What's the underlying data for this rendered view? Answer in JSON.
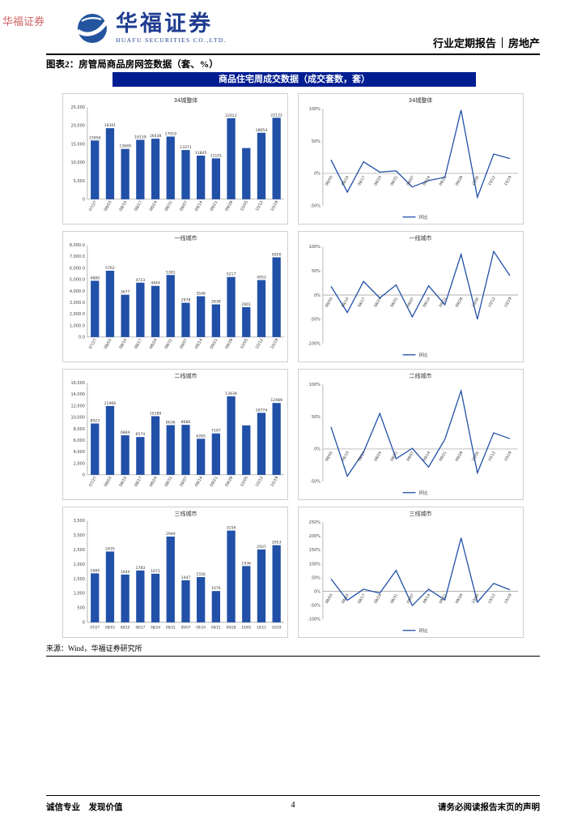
{
  "watermark": "华福证券",
  "header": {
    "brand_cn": "华福证券",
    "brand_en": "HUAFU SECURITIES CO.,LTD.",
    "report_type": "行业定期报告",
    "sector": "房地产"
  },
  "figure_caption": "图表2：房管局商品房网签数据（套、%）",
  "panel_title": "商品住宅周成交数据（成交套数，套）",
  "source": "来源：Wind，华福证券研究所",
  "footer": {
    "left": "诚信专业　发现价值",
    "page": "4",
    "right": "请务必阅读报告末页的声明"
  },
  "colors": {
    "bar": "#2150a8",
    "line": "#2150a8",
    "panel_header_bg": "#001d91",
    "brand_blue": "#1f3c90",
    "watermark_red": "#c43a3a"
  },
  "chart_data": [
    {
      "id": "bar-chart-34-cities",
      "type": "bar",
      "title": "34城整体",
      "categories": [
        "07/27",
        "08/03",
        "08/10",
        "08/17",
        "08/24",
        "08/31",
        "09/07",
        "09/14",
        "09/21",
        "09/28",
        "10/05",
        "10/12",
        "10/19"
      ],
      "values": [
        15956,
        19301,
        13669,
        16139,
        16438,
        17019,
        13371,
        11845,
        11101,
        22012,
        13900,
        18054,
        22122
      ],
      "bar_labels": [
        "15956",
        "19301",
        "13669",
        "16139",
        "16438",
        "17019",
        "13371",
        "11845",
        "11101",
        "22012",
        "",
        "18054",
        "22122"
      ],
      "ymax": 25000,
      "yticks": [
        [
          0,
          "0"
        ],
        [
          5000,
          "5,000"
        ],
        [
          10000,
          "10,000"
        ],
        [
          15000,
          "15,000"
        ],
        [
          20000,
          "20,000"
        ],
        [
          25000,
          "25,000"
        ]
      ],
      "xlabels_rotated": true
    },
    {
      "id": "line-chart-34-cities",
      "type": "line",
      "title": "34城整体",
      "categories": [
        "08/03",
        "08/10",
        "08/17",
        "08/24",
        "08/31",
        "09/07",
        "09/14",
        "09/21",
        "09/28",
        "10/05",
        "10/12",
        "10/19"
      ],
      "values": [
        21,
        -29,
        18,
        2,
        4,
        -21,
        -11,
        -6,
        98,
        -37,
        30,
        23
      ],
      "ymin": -50,
      "ymax": 100,
      "yticks": [
        [
          100,
          "100%"
        ],
        [
          50,
          "50%"
        ],
        [
          0,
          "0%"
        ],
        [
          -50,
          "-50%"
        ]
      ],
      "legend": "环比"
    },
    {
      "id": "bar-chart-tier1-cities",
      "type": "bar",
      "title": "一线城市",
      "categories": [
        "07/27",
        "08/03",
        "08/10",
        "08/17",
        "08/24",
        "08/31",
        "09/07",
        "09/14",
        "09/21",
        "09/28",
        "10/05",
        "10/12",
        "10/19"
      ],
      "values": [
        4889,
        5762,
        3677,
        4723,
        4444,
        5391,
        2978,
        3546,
        2838,
        5217,
        2601,
        4953,
        6926
      ],
      "bar_labels": [
        "4889",
        "5762",
        "3677",
        "4723",
        "4444",
        "5391",
        "2978",
        "3546",
        "2838",
        "5217",
        "2601",
        "4953",
        "6926"
      ],
      "ymax": 8000,
      "yticks": [
        [
          0,
          "0.0"
        ],
        [
          1000,
          "1,000.0"
        ],
        [
          2000,
          "2,000.0"
        ],
        [
          3000,
          "3,000.0"
        ],
        [
          4000,
          "4,000.0"
        ],
        [
          5000,
          "5,000.0"
        ],
        [
          6000,
          "6,000.0"
        ],
        [
          7000,
          "7,000.0"
        ],
        [
          8000,
          "8,000.0"
        ]
      ],
      "xlabels_rotated": true
    },
    {
      "id": "line-chart-tier1-cities",
      "type": "line",
      "title": "一线城市",
      "categories": [
        "08/03",
        "08/10",
        "08/17",
        "08/24",
        "08/31",
        "09/07",
        "09/14",
        "09/21",
        "09/28",
        "10/05",
        "10/12",
        "10/19"
      ],
      "values": [
        18,
        -36,
        28,
        -6,
        21,
        -45,
        19,
        -20,
        84,
        -50,
        90,
        40
      ],
      "ymin": -100,
      "ymax": 100,
      "yticks": [
        [
          100,
          "100%"
        ],
        [
          50,
          "50%"
        ],
        [
          0,
          "0%"
        ],
        [
          -50,
          "-50%"
        ],
        [
          -100,
          "-100%"
        ]
      ],
      "legend": "环比"
    },
    {
      "id": "bar-chart-tier2-cities",
      "type": "bar",
      "title": "二线城市",
      "categories": [
        "07/27",
        "08/03",
        "08/10",
        "08/17",
        "08/24",
        "08/31",
        "09/07",
        "09/14",
        "09/21",
        "09/28",
        "10/05",
        "10/12",
        "10/19"
      ],
      "values": [
        8923,
        11966,
        6884,
        6574,
        10189,
        8636,
        8686,
        6265,
        7197,
        13639,
        8600,
        10774,
        12489
      ],
      "bar_labels": [
        "8923",
        "11966",
        "6884",
        "6574",
        "10189",
        "8636",
        "8686",
        "6265",
        "7197",
        "13639",
        "",
        "10774",
        "12489"
      ],
      "ymax": 16000,
      "yticks": [
        [
          0,
          "0"
        ],
        [
          2000,
          "2,000"
        ],
        [
          4000,
          "4,000"
        ],
        [
          6000,
          "6,000"
        ],
        [
          8000,
          "8,000"
        ],
        [
          10000,
          "10,000"
        ],
        [
          12000,
          "12,000"
        ],
        [
          14000,
          "14,000"
        ],
        [
          16000,
          "16,000"
        ]
      ],
      "xlabels_rotated": true
    },
    {
      "id": "line-chart-tier2-cities",
      "type": "line",
      "title": "二线城市",
      "categories": [
        "08/03",
        "08/10",
        "08/17",
        "08/24",
        "08/31",
        "09/07",
        "09/14",
        "09/21",
        "09/28",
        "10/05",
        "10/12",
        "10/19"
      ],
      "values": [
        34,
        -42,
        -5,
        55,
        -15,
        1,
        -28,
        15,
        90,
        -37,
        25,
        16
      ],
      "ymin": -50,
      "ymax": 100,
      "yticks": [
        [
          100,
          "100%"
        ],
        [
          50,
          "50%"
        ],
        [
          0,
          "0%"
        ],
        [
          -50,
          "-50%"
        ]
      ],
      "legend": "环比"
    },
    {
      "id": "bar-chart-tier3-cities",
      "type": "bar",
      "title": "三线城市",
      "categories": [
        "07/27",
        "08/03",
        "08/10",
        "08/17",
        "08/24",
        "08/31",
        "09/07",
        "09/14",
        "09/21",
        "09/28",
        "10/05",
        "10/12",
        "10/19"
      ],
      "values": [
        1684,
        2435,
        1644,
        1783,
        1671,
        2949,
        1447,
        1556,
        1076,
        3156,
        1936,
        2507,
        2653
      ],
      "bar_labels": [
        "1684",
        "2435",
        "1644",
        "1783",
        "1671",
        "2949",
        "1447",
        "1556",
        "1076",
        "3156",
        "1936",
        "2507",
        "2653"
      ],
      "ymax": 3500,
      "yticks": [
        [
          0,
          "0"
        ],
        [
          500,
          "500"
        ],
        [
          1000,
          "1,000"
        ],
        [
          1500,
          "1,500"
        ],
        [
          2000,
          "2,000"
        ],
        [
          2500,
          "2,500"
        ],
        [
          3000,
          "3,000"
        ],
        [
          3500,
          "3,500"
        ]
      ],
      "xlabels_rotated": false
    },
    {
      "id": "line-chart-tier3-cities",
      "type": "line",
      "title": "三线城市",
      "categories": [
        "08/03",
        "08/10",
        "08/17",
        "08/24",
        "08/31",
        "09/07",
        "09/14",
        "09/21",
        "09/28",
        "10/05",
        "10/12",
        "10/19"
      ],
      "values": [
        45,
        -32,
        8,
        -6,
        76,
        -51,
        8,
        -31,
        193,
        -39,
        29,
        6
      ],
      "ymin": -100,
      "ymax": 250,
      "yticks": [
        [
          250,
          "250%"
        ],
        [
          200,
          "200%"
        ],
        [
          150,
          "150%"
        ],
        [
          100,
          "100%"
        ],
        [
          50,
          "50%"
        ],
        [
          0,
          "0%"
        ],
        [
          -50,
          "-50%"
        ],
        [
          -100,
          "-100%"
        ]
      ],
      "legend": "环比"
    }
  ]
}
